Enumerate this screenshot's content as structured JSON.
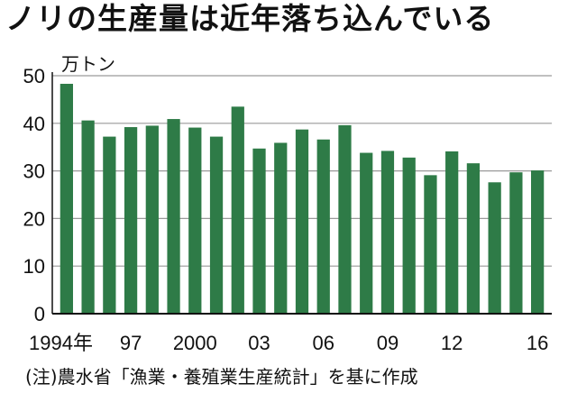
{
  "title": "ノリの生産量は近年落ち込んでいる",
  "source": "(注)農水省「漁業・養殖業生産統計」を基に作成",
  "colors": {
    "bar": "#2e7b47",
    "grid": "#9a9a9a",
    "axis": "#111111"
  },
  "chart_data": {
    "type": "bar",
    "ylabel": "万トン",
    "ylim": [
      0,
      50
    ],
    "yticks": [
      0,
      10,
      20,
      30,
      40,
      50
    ],
    "grid": true,
    "categories": [
      "1994",
      "1995",
      "1996",
      "1997",
      "1998",
      "1999",
      "2000",
      "2001",
      "2002",
      "2003",
      "2004",
      "2005",
      "2006",
      "2007",
      "2008",
      "2009",
      "2010",
      "2011",
      "2012",
      "2013",
      "2014",
      "2015",
      "2016"
    ],
    "x_tick_labels": [
      "1994年",
      "",
      "",
      "97",
      "",
      "",
      "2000",
      "",
      "",
      "03",
      "",
      "",
      "06",
      "",
      "",
      "09",
      "",
      "",
      "12",
      "",
      "",
      "",
      "16"
    ],
    "values": [
      48.3,
      40.6,
      37.2,
      39.2,
      39.5,
      40.9,
      39.1,
      37.2,
      43.5,
      34.7,
      35.9,
      38.7,
      36.6,
      39.6,
      33.8,
      34.2,
      32.8,
      29.1,
      34.1,
      31.6,
      27.6,
      29.7,
      30.1
    ]
  }
}
